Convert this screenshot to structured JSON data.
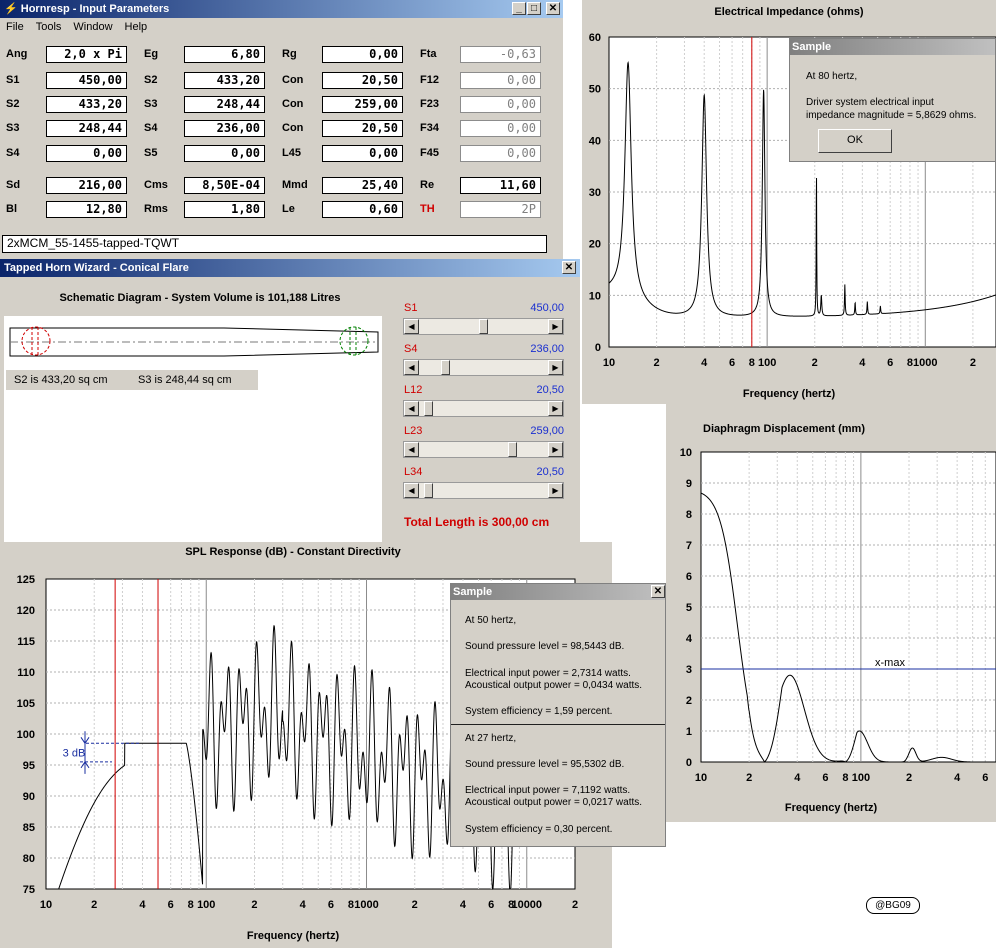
{
  "input_window": {
    "title": "Hornresp - Input Parameters",
    "menu": [
      "File",
      "Tools",
      "Window",
      "Help"
    ],
    "rows": [
      [
        {
          "label": "Ang",
          "value": "2,0 x Pi"
        },
        {
          "label": "Eg",
          "value": "6,80"
        },
        {
          "label": "Rg",
          "value": "0,00"
        },
        {
          "label": "Fta",
          "value": "-0,63",
          "disabled": true
        }
      ],
      [
        {
          "label": "S1",
          "value": "450,00"
        },
        {
          "label": "S2",
          "value": "433,20"
        },
        {
          "label": "Con",
          "value": "20,50"
        },
        {
          "label": "F12",
          "value": "0,00",
          "disabled": true
        }
      ],
      [
        {
          "label": "S2",
          "value": "433,20"
        },
        {
          "label": "S3",
          "value": "248,44"
        },
        {
          "label": "Con",
          "value": "259,00"
        },
        {
          "label": "F23",
          "value": "0,00",
          "disabled": true
        }
      ],
      [
        {
          "label": "S3",
          "value": "248,44"
        },
        {
          "label": "S4",
          "value": "236,00"
        },
        {
          "label": "Con",
          "value": "20,50"
        },
        {
          "label": "F34",
          "value": "0,00",
          "disabled": true
        }
      ],
      [
        {
          "label": "S4",
          "value": "0,00"
        },
        {
          "label": "S5",
          "value": "0,00"
        },
        {
          "label": "L45",
          "value": "0,00"
        },
        {
          "label": "F45",
          "value": "0,00",
          "disabled": true
        }
      ],
      [
        {
          "label": "Sd",
          "value": "216,00"
        },
        {
          "label": "Cms",
          "value": "8,50E-04"
        },
        {
          "label": "Mmd",
          "value": "25,40"
        },
        {
          "label": "Re",
          "value": "11,60"
        }
      ],
      [
        {
          "label": "Bl",
          "value": "12,80"
        },
        {
          "label": "Rms",
          "value": "1,80"
        },
        {
          "label": "Le",
          "value": "0,60"
        },
        {
          "label": "TH",
          "value": "2P",
          "disabled": true,
          "red": true
        }
      ]
    ],
    "record_name": "2xMCM_55-1455-tapped-TQWT"
  },
  "wizard": {
    "title": "Tapped Horn Wizard - Conical Flare",
    "schematic_title": "Schematic Diagram - System Volume is 101,188 Litres",
    "s2_text": "S2 is 433,20 sq cm",
    "s3_text": "S3 is 248,44 sq cm",
    "sliders": [
      {
        "label": "S1",
        "value": "450,00",
        "position": 0.5
      },
      {
        "label": "S4",
        "value": "236,00",
        "position": 0.18
      },
      {
        "label": "L12",
        "value": "20,50",
        "position": 0.04
      },
      {
        "label": "L23",
        "value": "259,00",
        "position": 0.74
      },
      {
        "label": "L34",
        "value": "20,50",
        "position": 0.04
      }
    ],
    "total_length": "Total Length is 300,00 cm"
  },
  "impedance_chart": {
    "title": "Electrical Impedance (ohms)",
    "xlabel": "Frequency (hertz)",
    "x_ticks": [
      "10",
      "2",
      "4",
      "6",
      "8",
      "100",
      "2",
      "4",
      "6",
      "8",
      "1000",
      "2"
    ],
    "y_ticks": [
      "60",
      "50",
      "40",
      "30",
      "20",
      "10",
      "0"
    ],
    "ylim": [
      0,
      60
    ],
    "marker_hz": 80,
    "popup": {
      "title": "Sample",
      "lines": [
        "At 80 hertz,",
        "Driver system electrical input",
        "impedance magnitude = 5,8629 ohms."
      ],
      "ok": "OK"
    }
  },
  "displacement_chart": {
    "title": "Diaphragm Displacement (mm)",
    "xlabel": "Frequency (hertz)",
    "x_ticks": [
      "10",
      "2",
      "4",
      "6",
      "8",
      "100",
      "2",
      "4",
      "6"
    ],
    "y_ticks": [
      "10",
      "9",
      "8",
      "7",
      "6",
      "5",
      "4",
      "3",
      "2",
      "1",
      "0"
    ],
    "ylim": [
      0,
      10
    ],
    "xmax_label": "x-max",
    "xmax_value": 3
  },
  "spl_chart": {
    "title": "SPL Response (dB) - Constant Directivity",
    "xlabel": "Frequency (hertz)",
    "x_ticks": [
      "10",
      "2",
      "4",
      "6",
      "8",
      "100",
      "2",
      "4",
      "6",
      "8",
      "1000",
      "2",
      "4",
      "6",
      "8",
      "10000",
      "2"
    ],
    "y_ticks": [
      "125",
      "120",
      "115",
      "110",
      "105",
      "100",
      "95",
      "90",
      "85",
      "80",
      "75"
    ],
    "ylim": [
      75,
      125
    ],
    "marker_hz": [
      27,
      50
    ],
    "db_annotation": "3 dB",
    "popup": {
      "title": "Sample",
      "section1": [
        "At 50 hertz,",
        "Sound pressure level = 98,5443 dB.",
        "Electrical input power = 2,7314 watts.",
        "Acoustical output power = 0,0434 watts.",
        "System efficiency = 1,59 percent."
      ],
      "section2": [
        "At 27 hertz,",
        "Sound pressure level = 95,5302 dB.",
        "Electrical input power = 7,1192 watts.",
        "Acoustical output power = 0,0217 watts.",
        "System efficiency = 0,30 percent."
      ]
    }
  },
  "watermark": "@BG09"
}
